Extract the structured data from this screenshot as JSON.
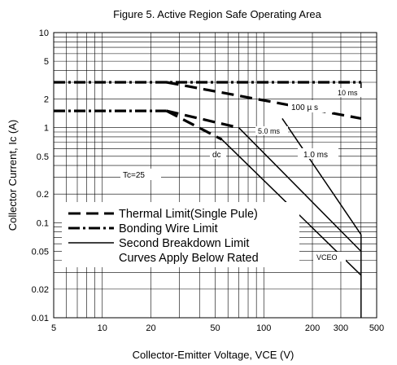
{
  "chart_data": {
    "type": "line",
    "title": "Figure 5. Active Region Safe Operating Area",
    "xlabel": "Collector-Emitter Voltage, VCE (V)",
    "ylabel": "Collector Current, Ic (A)",
    "x_scale": "log",
    "y_scale": "log",
    "xlim": [
      5,
      500
    ],
    "ylim": [
      0.01,
      10
    ],
    "x_ticks": [
      5,
      10,
      20,
      50,
      100,
      200,
      300,
      500
    ],
    "y_ticks": [
      0.01,
      0.02,
      0.05,
      0.1,
      0.2,
      0.5,
      1,
      2,
      5,
      10
    ],
    "grid": true,
    "legend_position": "lower-left",
    "legend": [
      "Thermal Limit(Single Pule)",
      "Bonding Wire Limit",
      "Second Breakdown Limit",
      "Curves Apply Below Rated"
    ],
    "annotations": {
      "tc": "Tc=25",
      "dc": "dc",
      "ms5": "5.0 ms",
      "ms1": "1.0 ms",
      "us100": "100 µ s",
      "ms10": "10 ms",
      "vceo": "VCEO"
    },
    "series": [
      {
        "style": "bonding",
        "points": [
          [
            5,
            3
          ],
          [
            400,
            3
          ]
        ]
      },
      {
        "style": "bonding",
        "points": [
          [
            5,
            1.5
          ],
          [
            25,
            1.5
          ]
        ]
      },
      {
        "style": "thermal",
        "points": [
          [
            25,
            3
          ],
          [
            400,
            1.25
          ]
        ]
      },
      {
        "style": "thermal",
        "points": [
          [
            25,
            1.5
          ],
          [
            70,
            1.0
          ]
        ]
      },
      {
        "style": "thermal",
        "points": [
          [
            25,
            1.5
          ],
          [
            55,
            0.75
          ]
        ]
      },
      {
        "style": "solid",
        "points": [
          [
            55,
            0.75
          ],
          [
            400,
            0.028
          ]
        ]
      },
      {
        "style": "solid",
        "points": [
          [
            70,
            1.0
          ],
          [
            400,
            0.05
          ]
        ]
      },
      {
        "style": "solid",
        "points": [
          [
            130,
            1.25
          ],
          [
            400,
            0.075
          ]
        ]
      },
      {
        "style": "solid",
        "points": [
          [
            400,
            3
          ],
          [
            400,
            2.5
          ]
        ]
      },
      {
        "style": "solid",
        "points": [
          [
            400,
            0.075
          ],
          [
            400,
            0.01
          ]
        ]
      }
    ]
  }
}
